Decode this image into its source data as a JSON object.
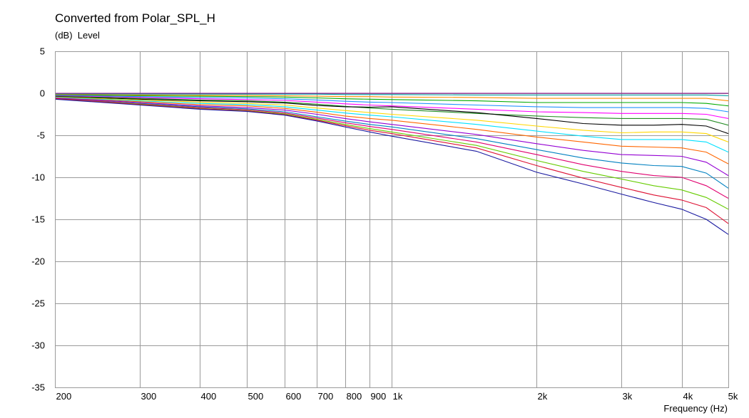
{
  "chart_data": {
    "type": "line",
    "title": "Converted from Polar_SPL_H",
    "ylabel_unit": "(dB)",
    "ylabel": "Level",
    "xlabel": "Frequency",
    "xlabel_unit": "(Hz)",
    "x_scale": "log",
    "xlim": [
      200,
      5000
    ],
    "ylim": [
      -35,
      5
    ],
    "grid": true,
    "x_ticks": [
      {
        "value": 200,
        "label": "200"
      },
      {
        "value": 300,
        "label": "300"
      },
      {
        "value": 400,
        "label": "400"
      },
      {
        "value": 500,
        "label": "500"
      },
      {
        "value": 600,
        "label": "600"
      },
      {
        "value": 700,
        "label": "700"
      },
      {
        "value": 800,
        "label": "800"
      },
      {
        "value": 900,
        "label": "900"
      },
      {
        "value": 1000,
        "label": "1k"
      },
      {
        "value": 2000,
        "label": "2k"
      },
      {
        "value": 3000,
        "label": "3k"
      },
      {
        "value": 4000,
        "label": "4k"
      },
      {
        "value": 5000,
        "label": "5k"
      }
    ],
    "y_ticks": [
      5,
      0,
      -5,
      -10,
      -15,
      -20,
      -25,
      -30,
      -35
    ],
    "x": [
      200,
      300,
      400,
      500,
      600,
      700,
      800,
      900,
      1000,
      1500,
      2000,
      2500,
      3000,
      3500,
      4000,
      4500,
      5000
    ],
    "series": [
      {
        "color": "#8b008b",
        "values": [
          0,
          0,
          0,
          0,
          0,
          0,
          0,
          0,
          0,
          0,
          0,
          0,
          0,
          0,
          0,
          0,
          0
        ]
      },
      {
        "color": "#00a0a0",
        "values": [
          -0.1,
          -0.1,
          -0.1,
          -0.1,
          -0.1,
          -0.1,
          -0.15,
          -0.15,
          -0.15,
          -0.2,
          -0.2,
          -0.2,
          -0.2,
          -0.2,
          -0.2,
          -0.2,
          -0.3
        ]
      },
      {
        "color": "#ff8c00",
        "values": [
          -0.15,
          -0.2,
          -0.25,
          -0.25,
          -0.3,
          -0.35,
          -0.4,
          -0.4,
          -0.45,
          -0.5,
          -0.6,
          -0.6,
          -0.6,
          -0.6,
          -0.6,
          -0.6,
          -0.9
        ]
      },
      {
        "color": "#00aa00",
        "values": [
          -0.2,
          -0.3,
          -0.35,
          -0.4,
          -0.45,
          -0.55,
          -0.65,
          -0.7,
          -0.75,
          -0.9,
          -1.1,
          -1.1,
          -1.1,
          -1.1,
          -1.1,
          -1.2,
          -1.5
        ]
      },
      {
        "color": "#1e90ff",
        "values": [
          -0.25,
          -0.4,
          -0.5,
          -0.55,
          -0.65,
          -0.8,
          -0.95,
          -1.05,
          -1.1,
          -1.4,
          -1.6,
          -1.7,
          -1.7,
          -1.7,
          -1.7,
          -1.8,
          -2.2
        ]
      },
      {
        "color": "#ff00ff",
        "values": [
          -0.3,
          -0.5,
          -0.65,
          -0.75,
          -0.85,
          -1.05,
          -1.25,
          -1.4,
          -1.5,
          -1.9,
          -2.2,
          -2.3,
          -2.4,
          -2.4,
          -2.4,
          -2.5,
          -3.0
        ]
      },
      {
        "color": "#228b22",
        "values": [
          -0.35,
          -0.6,
          -0.8,
          -0.9,
          -1.05,
          -1.3,
          -1.55,
          -1.75,
          -1.9,
          -2.4,
          -2.7,
          -2.9,
          -3.0,
          -3.0,
          -3.0,
          -3.1,
          -3.8
        ]
      },
      {
        "color": "#000000",
        "values": [
          -0.4,
          -0.7,
          -0.9,
          -1.0,
          -1.15,
          -1.45,
          -1.6,
          -1.65,
          -1.6,
          -2.3,
          -3.0,
          -3.6,
          -3.8,
          -3.8,
          -3.7,
          -3.9,
          -4.8
        ]
      },
      {
        "color": "#ffd700",
        "values": [
          -0.45,
          -0.8,
          -1.05,
          -1.2,
          -1.4,
          -1.75,
          -2.05,
          -2.3,
          -2.5,
          -3.2,
          -3.9,
          -4.4,
          -4.7,
          -4.6,
          -4.6,
          -4.8,
          -5.8
        ]
      },
      {
        "color": "#00e0ff",
        "values": [
          -0.5,
          -0.9,
          -1.2,
          -1.35,
          -1.6,
          -2.0,
          -2.35,
          -2.6,
          -2.8,
          -3.7,
          -4.5,
          -5.1,
          -5.5,
          -5.5,
          -5.5,
          -5.8,
          -7.0
        ]
      },
      {
        "color": "#ff6600",
        "values": [
          -0.55,
          -1.0,
          -1.35,
          -1.5,
          -1.8,
          -2.25,
          -2.7,
          -3.0,
          -3.2,
          -4.3,
          -5.2,
          -5.8,
          -6.3,
          -6.4,
          -6.5,
          -7.0,
          -8.4
        ]
      },
      {
        "color": "#9400d3",
        "values": [
          -0.55,
          -1.1,
          -1.5,
          -1.7,
          -2.0,
          -2.5,
          -3.0,
          -3.4,
          -3.7,
          -4.9,
          -6.0,
          -6.8,
          -7.3,
          -7.4,
          -7.5,
          -8.2,
          -9.8
        ]
      },
      {
        "color": "#0080c0",
        "values": [
          -0.6,
          -1.2,
          -1.6,
          -1.85,
          -2.2,
          -2.8,
          -3.3,
          -3.7,
          -4.0,
          -5.4,
          -6.7,
          -7.7,
          -8.3,
          -8.6,
          -8.7,
          -9.5,
          -11.3
        ]
      },
      {
        "color": "#e0006f",
        "values": [
          -0.6,
          -1.25,
          -1.7,
          -1.95,
          -2.35,
          -2.95,
          -3.5,
          -3.95,
          -4.3,
          -5.8,
          -7.3,
          -8.5,
          -9.3,
          -9.8,
          -10.0,
          -11.0,
          -12.5
        ]
      },
      {
        "color": "#66cc00",
        "values": [
          -0.65,
          -1.3,
          -1.8,
          -2.05,
          -2.45,
          -3.1,
          -3.7,
          -4.2,
          -4.6,
          -6.2,
          -8.0,
          -9.3,
          -10.2,
          -11.0,
          -11.5,
          -12.4,
          -13.8
        ]
      },
      {
        "color": "#dd1133",
        "values": [
          -0.65,
          -1.35,
          -1.85,
          -2.1,
          -2.55,
          -3.2,
          -3.85,
          -4.4,
          -4.8,
          -6.5,
          -8.6,
          -10.1,
          -11.2,
          -12.1,
          -12.7,
          -13.6,
          -15.5
        ]
      },
      {
        "color": "#1a1aa0",
        "values": [
          -0.7,
          -1.4,
          -1.9,
          -2.15,
          -2.6,
          -3.3,
          -4.0,
          -4.6,
          -5.1,
          -6.9,
          -9.4,
          -10.8,
          -12.0,
          -13.0,
          -13.8,
          -15.0,
          -16.8
        ]
      }
    ]
  }
}
